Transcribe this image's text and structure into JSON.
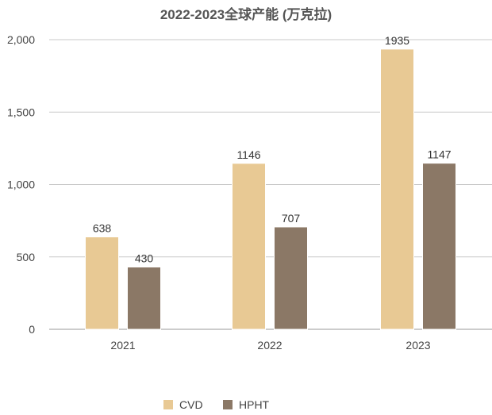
{
  "chart_data": {
    "type": "bar",
    "title": "2022-2023全球产能 (万克拉)",
    "categories": [
      "2021",
      "2022",
      "2023"
    ],
    "series": [
      {
        "name": "CVD",
        "values": [
          638,
          1146,
          1935
        ],
        "color": "#e8c994"
      },
      {
        "name": "HPHT",
        "values": [
          430,
          707,
          1147
        ],
        "color": "#8b7866"
      }
    ],
    "ylim": [
      0,
      2000
    ],
    "yticks": [
      0,
      500,
      1000,
      1500,
      2000
    ],
    "ytick_labels": [
      "0",
      "500",
      "1,000",
      "1,500",
      "2,000"
    ],
    "grid": true,
    "legend_position": "bottom"
  }
}
